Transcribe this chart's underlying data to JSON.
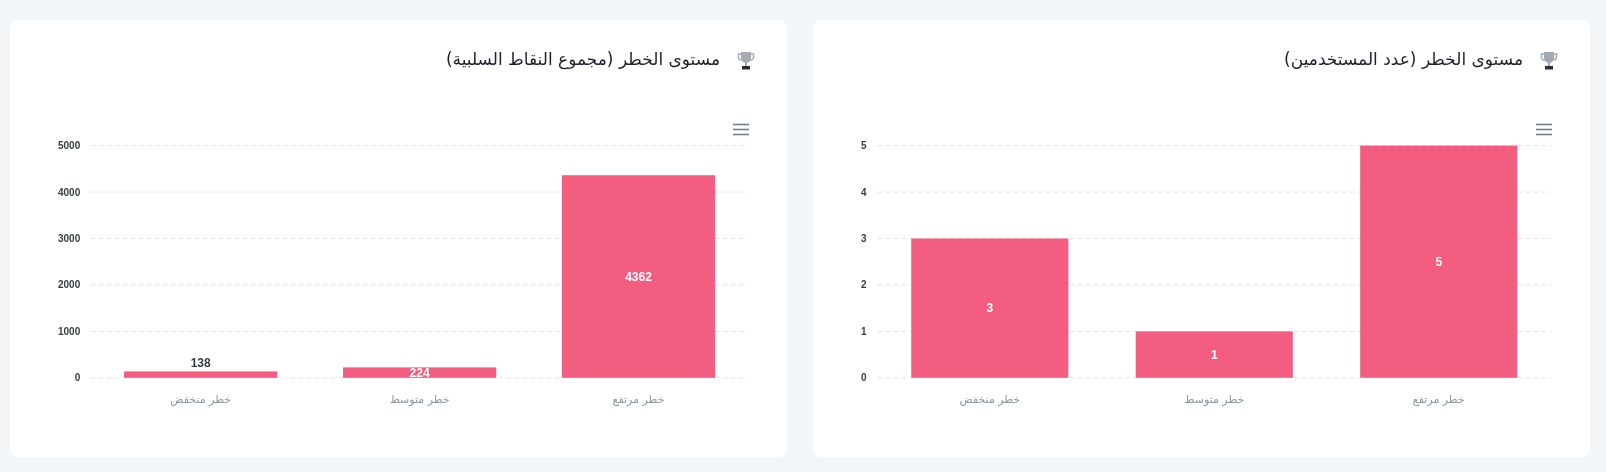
{
  "chart_data": [
    {
      "type": "bar",
      "title": "مستوى الخطر (عدد المستخدمين)",
      "categories": [
        "خطر منخفض",
        "خطر متوسط",
        "خطر مرتفع"
      ],
      "values": [
        3,
        1,
        5
      ],
      "color": "#f25d80",
      "ylim": [
        0,
        5
      ],
      "yticks": [
        0,
        1,
        2,
        3,
        4,
        5
      ],
      "grid": "y",
      "data_labels": true
    },
    {
      "type": "bar",
      "title": "مستوى الخطر (مجموع النقاط السلبية)",
      "categories": [
        "خطر منخفض",
        "خطر متوسط",
        "خطر مرتفع"
      ],
      "values": [
        138,
        224,
        4362
      ],
      "color": "#f25d80",
      "ylim": [
        0,
        5000
      ],
      "yticks": [
        0,
        1000,
        2000,
        3000,
        4000,
        5000
      ],
      "grid": "y",
      "data_labels": true
    }
  ]
}
